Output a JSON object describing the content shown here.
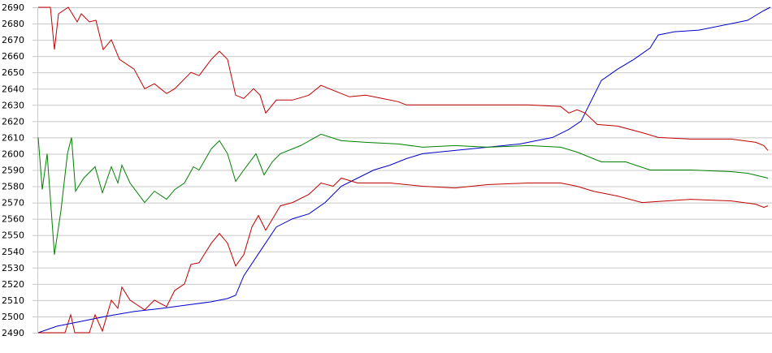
{
  "chart_data": {
    "type": "line",
    "xlim": [
      0,
      900
    ],
    "ylim": [
      2490,
      2690
    ],
    "yticks": [
      2490,
      2500,
      2510,
      2520,
      2530,
      2540,
      2550,
      2560,
      2570,
      2580,
      2590,
      2600,
      2610,
      2620,
      2630,
      2640,
      2650,
      2660,
      2670,
      2680,
      2690
    ],
    "grid": true,
    "series": [
      {
        "color": "#0000cc",
        "x": [
          0,
          23,
          53,
          83,
          118,
          153,
          183,
          213,
          233,
          243,
          253,
          273,
          293,
          313,
          333,
          353,
          373,
          393,
          413,
          433,
          453,
          473,
          513,
          553,
          593,
          633,
          653,
          668,
          678,
          693,
          713,
          733,
          753,
          763,
          783,
          813,
          853,
          873,
          893,
          901
        ],
        "values": [
          2490,
          2494,
          2497,
          2500,
          2503,
          2505,
          2507,
          2509,
          2511,
          2513,
          2525,
          2540,
          2555,
          2560,
          2563,
          2570,
          2580,
          2585,
          2590,
          2593,
          2597,
          2600,
          2602,
          2604,
          2606,
          2610,
          2615,
          2620,
          2630,
          2645,
          2652,
          2658,
          2665,
          2673,
          2675,
          2676,
          2680,
          2682,
          2688,
          2690
        ]
      },
      {
        "color": "#c00000",
        "x": [
          0,
          15,
          20,
          25,
          37,
          48,
          53,
          63,
          71,
          80,
          90,
          100,
          118,
          131,
          143,
          158,
          168,
          188,
          198,
          213,
          223,
          233,
          243,
          253,
          265,
          273,
          280,
          293,
          313,
          333,
          348,
          368,
          383,
          403,
          423,
          443,
          453,
          503,
          553,
          603,
          643,
          653,
          663,
          673,
          688,
          713,
          743,
          763,
          803,
          853,
          883,
          893,
          898
        ],
        "values": [
          2690,
          2690,
          2664,
          2686,
          2690,
          2681,
          2686,
          2681,
          2682,
          2664,
          2670,
          2658,
          2652,
          2640,
          2643,
          2637,
          2640,
          2650,
          2648,
          2658,
          2663,
          2658,
          2636,
          2634,
          2640,
          2636,
          2625,
          2633,
          2633,
          2636,
          2642,
          2638,
          2635,
          2636,
          2634,
          2632,
          2630,
          2630,
          2630,
          2630,
          2629,
          2625,
          2627,
          2625,
          2618,
          2617,
          2613,
          2610,
          2609,
          2609,
          2607,
          2605,
          2602
        ]
      },
      {
        "color": "#008000",
        "x": [
          0,
          5,
          11,
          20,
          28,
          36,
          41,
          46,
          56,
          70,
          79,
          90,
          98,
          103,
          113,
          131,
          143,
          158,
          168,
          180,
          191,
          198,
          213,
          223,
          233,
          243,
          253,
          268,
          278,
          288,
          298,
          323,
          348,
          373,
          403,
          443,
          473,
          513,
          553,
          603,
          643,
          663,
          693,
          723,
          753,
          803,
          853,
          873,
          898
        ],
        "values": [
          2610,
          2578,
          2600,
          2538,
          2565,
          2600,
          2610,
          2577,
          2585,
          2592,
          2576,
          2592,
          2582,
          2593,
          2582,
          2570,
          2577,
          2572,
          2578,
          2582,
          2592,
          2590,
          2603,
          2608,
          2600,
          2583,
          2590,
          2600,
          2587,
          2595,
          2600,
          2605,
          2612,
          2608,
          2607,
          2606,
          2604,
          2605,
          2604,
          2605,
          2604,
          2601,
          2595,
          2595,
          2590,
          2590,
          2589,
          2588,
          2585
        ]
      },
      {
        "color": "#c00000",
        "x": [
          0,
          33,
          40,
          45,
          63,
          70,
          79,
          90,
          98,
          103,
          113,
          131,
          143,
          158,
          168,
          180,
          188,
          198,
          213,
          223,
          233,
          243,
          253,
          263,
          271,
          280,
          298,
          313,
          333,
          348,
          363,
          373,
          393,
          433,
          473,
          513,
          553,
          603,
          643,
          663,
          683,
          713,
          743,
          773,
          803,
          853,
          883,
          893,
          898
        ],
        "values": [
          2490,
          2490,
          2501,
          2490,
          2490,
          2501,
          2491,
          2510,
          2505,
          2518,
          2510,
          2504,
          2510,
          2506,
          2516,
          2520,
          2532,
          2533,
          2545,
          2551,
          2545,
          2531,
          2538,
          2555,
          2562,
          2553,
          2568,
          2570,
          2575,
          2582,
          2580,
          2585,
          2582,
          2582,
          2580,
          2579,
          2581,
          2582,
          2582,
          2580,
          2577,
          2574,
          2570,
          2571,
          2572,
          2571,
          2569,
          2567,
          2568
        ]
      }
    ]
  }
}
